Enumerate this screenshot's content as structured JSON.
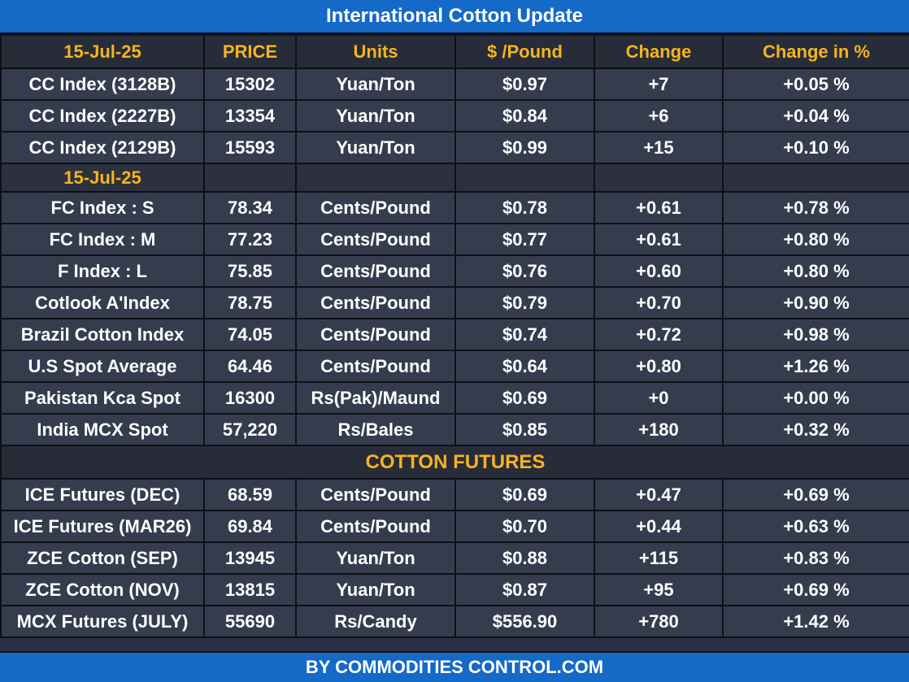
{
  "title": "International Cotton Update",
  "footer": "BY  COMMODITIES CONTROL.COM",
  "colors": {
    "banner": "#1569c7",
    "header_text": "#f5b421",
    "row_bg": "#353c4d",
    "border": "#0d1016"
  },
  "header": [
    "15-Jul-25",
    "PRICE",
    "Units",
    "$ /Pound",
    "Change",
    "Change in %"
  ],
  "cc_rows": [
    [
      "CC Index (3128B)",
      "15302",
      "Yuan/Ton",
      "$0.97",
      "+7",
      "+0.05 %"
    ],
    [
      "CC Index (2227B)",
      "13354",
      "Yuan/Ton",
      "$0.84",
      "+6",
      "+0.04 %"
    ],
    [
      "CC Index (2129B)",
      "15593",
      "Yuan/Ton",
      "$0.99",
      "+15",
      "+0.10 %"
    ]
  ],
  "subheader_date": "15-Jul-25",
  "index_rows": [
    [
      "FC Index : S",
      "78.34",
      "Cents/Pound",
      "$0.78",
      "+0.61",
      "+0.78 %"
    ],
    [
      "FC Index : M",
      "77.23",
      "Cents/Pound",
      "$0.77",
      "+0.61",
      "+0.80 %"
    ],
    [
      "F Index : L",
      "75.85",
      "Cents/Pound",
      "$0.76",
      "+0.60",
      "+0.80 %"
    ],
    [
      "Cotlook A'Index",
      "78.75",
      "Cents/Pound",
      "$0.79",
      "+0.70",
      "+0.90 %"
    ],
    [
      "Brazil Cotton Index",
      "74.05",
      "Cents/Pound",
      "$0.74",
      "+0.72",
      "+0.98 %"
    ],
    [
      "U.S Spot Average",
      "64.46",
      "Cents/Pound",
      "$0.64",
      "+0.80",
      "+1.26 %"
    ],
    [
      "Pakistan Kca Spot",
      "16300",
      "Rs(Pak)/Maund",
      "$0.69",
      "+0",
      "+0.00 %"
    ],
    [
      "India MCX Spot",
      "57,220",
      "Rs/Bales",
      "$0.85",
      "+180",
      "+0.32 %"
    ]
  ],
  "futures_title": "COTTON FUTURES",
  "futures_rows": [
    [
      "ICE Futures (DEC)",
      "68.59",
      "Cents/Pound",
      "$0.69",
      "+0.47",
      "+0.69 %"
    ],
    [
      "ICE Futures (MAR26)",
      "69.84",
      "Cents/Pound",
      "$0.70",
      "+0.44",
      "+0.63 %"
    ],
    [
      "ZCE Cotton (SEP)",
      "13945",
      "Yuan/Ton",
      "$0.88",
      "+115",
      "+0.83 %"
    ],
    [
      "ZCE Cotton (NOV)",
      "13815",
      "Yuan/Ton",
      "$0.87",
      "+95",
      "+0.69 %"
    ],
    [
      "MCX Futures (JULY)",
      "55690",
      "Rs/Candy",
      "$556.90",
      "+780",
      "+1.42 %"
    ]
  ]
}
